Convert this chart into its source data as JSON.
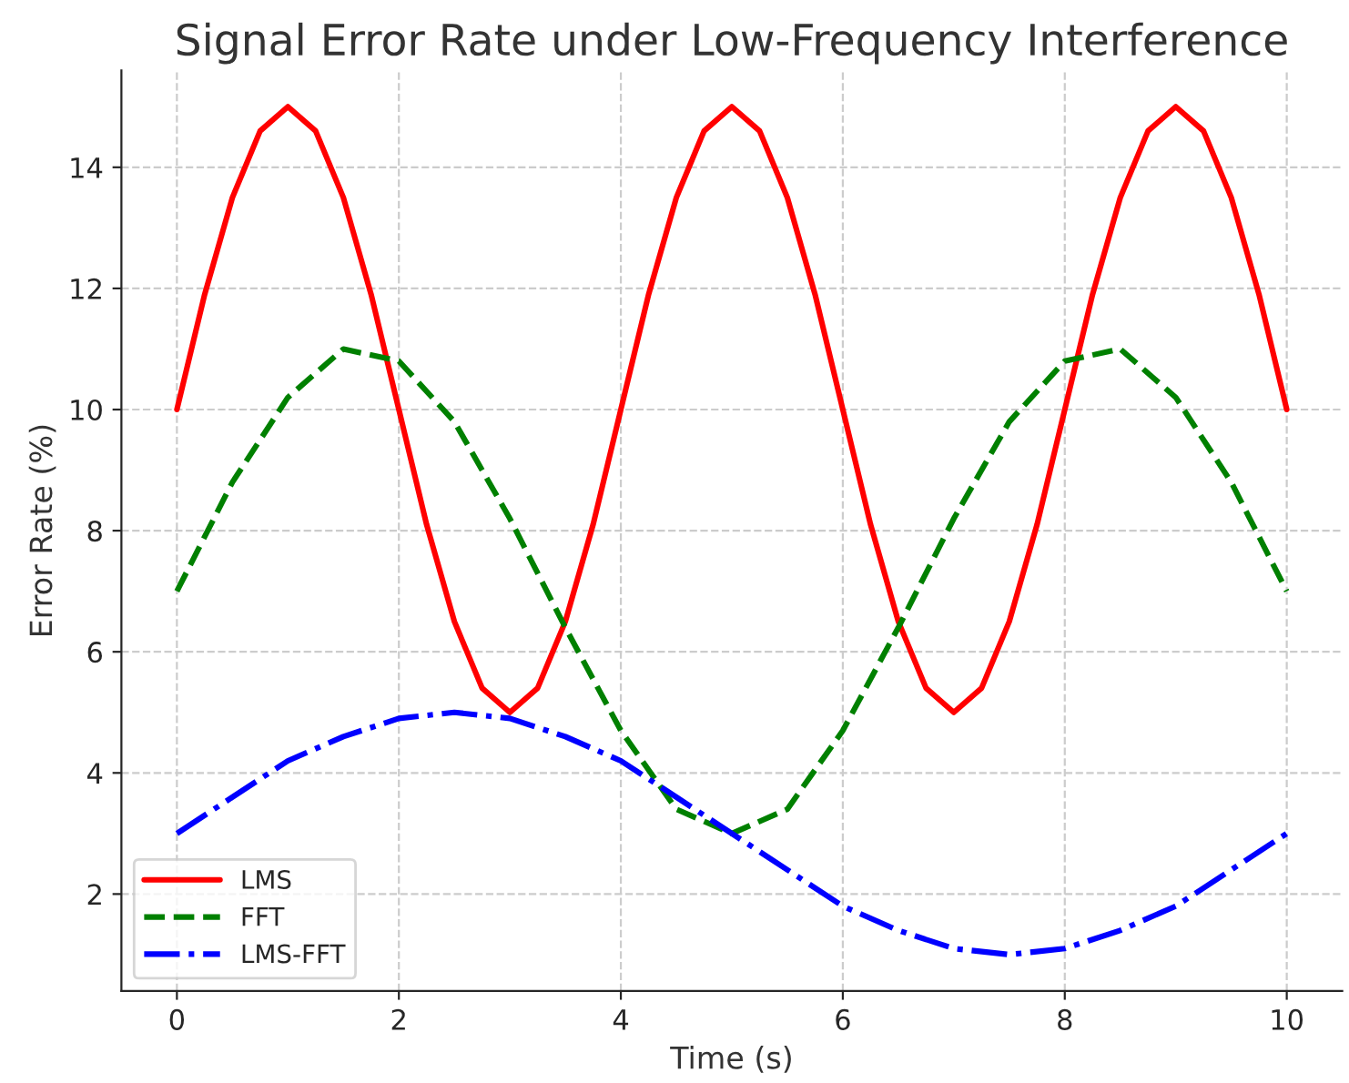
{
  "chart_data": {
    "type": "line",
    "title": "Signal Error Rate under Low-Frequency Interference",
    "xlabel": "Time (s)",
    "ylabel": "Error Rate (%)",
    "xlim": [
      -0.5,
      10.5
    ],
    "ylim": [
      0.4,
      15.6
    ],
    "xticks": [
      0,
      2,
      4,
      6,
      8,
      10
    ],
    "yticks": [
      2,
      4,
      6,
      8,
      10,
      12,
      14
    ],
    "grid": true,
    "legend": "bottom left",
    "series": [
      {
        "name": "LMS",
        "color": "#ff0000",
        "line_style": "solid",
        "x": [
          0,
          0.25,
          0.5,
          0.75,
          1,
          1.25,
          1.5,
          1.75,
          2,
          2.25,
          2.5,
          2.75,
          3,
          3.25,
          3.5,
          3.75,
          4,
          4.25,
          4.5,
          4.75,
          5,
          5.25,
          5.5,
          5.75,
          6,
          6.25,
          6.5,
          6.75,
          7,
          7.25,
          7.5,
          7.75,
          8,
          8.25,
          8.5,
          8.75,
          9,
          9.25,
          9.5,
          9.75,
          10
        ],
        "values": [
          10,
          11.9,
          13.5,
          14.6,
          15,
          14.6,
          13.5,
          11.9,
          10,
          8.1,
          6.5,
          5.4,
          5,
          5.4,
          6.5,
          8.1,
          10,
          11.9,
          13.5,
          14.6,
          15,
          14.6,
          13.5,
          11.9,
          10,
          8.1,
          6.5,
          5.4,
          5,
          5.4,
          6.5,
          8.1,
          10,
          11.9,
          13.5,
          14.6,
          15,
          14.6,
          13.5,
          11.9,
          10
        ]
      },
      {
        "name": "FFT",
        "color": "#008000",
        "line_style": "dashed",
        "x": [
          0,
          0.5,
          1,
          1.5,
          2,
          2.5,
          3,
          3.5,
          4,
          4.5,
          5,
          5.5,
          6,
          6.5,
          7,
          7.5,
          8,
          8.5,
          9,
          9.5,
          10
        ],
        "values": [
          7,
          8.8,
          10.2,
          11,
          10.8,
          9.8,
          8.2,
          6.4,
          4.7,
          3.4,
          3,
          3.4,
          4.7,
          6.4,
          8.2,
          9.8,
          10.8,
          11,
          10.2,
          8.8,
          7
        ]
      },
      {
        "name": "LMS-FFT",
        "color": "#0000ff",
        "line_style": "dashdot",
        "x": [
          0,
          0.5,
          1,
          1.5,
          2,
          2.5,
          3,
          3.5,
          4,
          4.5,
          5,
          5.5,
          6,
          6.5,
          7,
          7.5,
          8,
          8.5,
          9,
          9.5,
          10
        ],
        "values": [
          3,
          3.6,
          4.2,
          4.6,
          4.9,
          5,
          4.9,
          4.6,
          4.2,
          3.6,
          3,
          2.4,
          1.8,
          1.4,
          1.1,
          1,
          1.1,
          1.4,
          1.8,
          2.4,
          3
        ]
      }
    ]
  }
}
